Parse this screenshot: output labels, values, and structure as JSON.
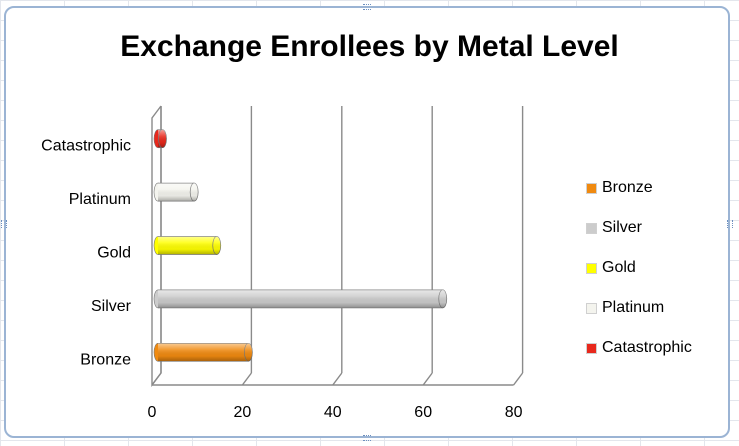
{
  "chart_data": {
    "type": "bar",
    "orientation": "horizontal",
    "style": "3d-cylinder",
    "title": "Exchange Enrollees by Metal Level",
    "categories": [
      "Bronze",
      "Silver",
      "Gold",
      "Platinum",
      "Catastrophic"
    ],
    "values": [
      20,
      63,
      13,
      8,
      1
    ],
    "colors": [
      "#f08a10",
      "#cccccc",
      "#ffff00",
      "#f4f4ee",
      "#e8281c"
    ],
    "xlim": [
      0,
      80
    ],
    "xticks": [
      "0",
      "20",
      "40",
      "60",
      "80"
    ],
    "grid": true,
    "legend_position": "right",
    "legend": [
      "Bronze",
      "Silver",
      "Gold",
      "Platinum",
      "Catastrophic"
    ]
  }
}
